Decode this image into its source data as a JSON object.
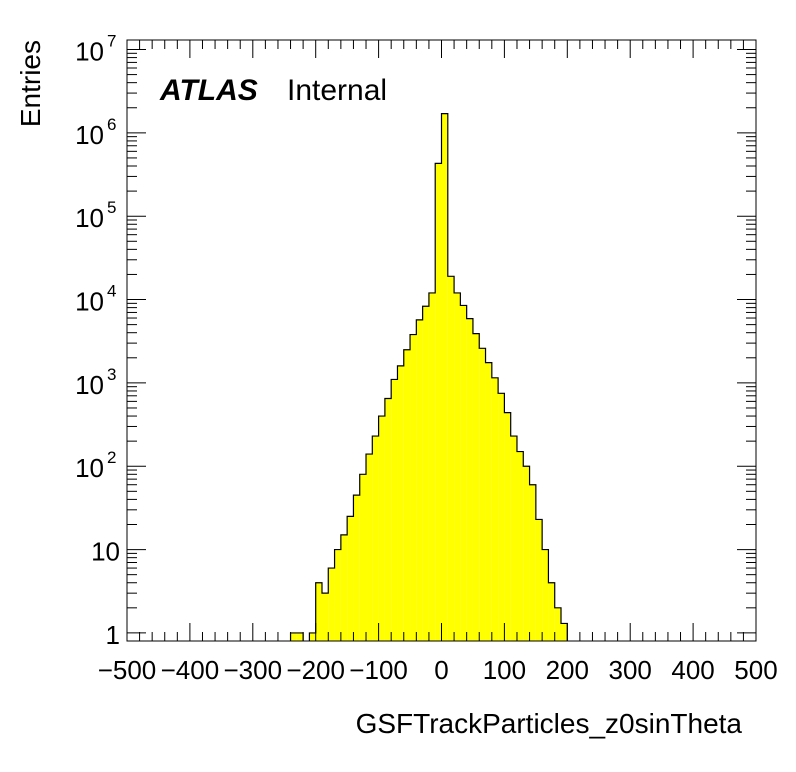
{
  "chart_data": {
    "type": "bar",
    "title": "",
    "xlabel": "GSFTrackParticles_z0sinTheta",
    "ylabel": "Entries",
    "xlim": [
      -500,
      500
    ],
    "ylim": [
      0.8,
      13000000
    ],
    "yscale": "log",
    "x_ticks": [
      "−500",
      "−400",
      "−300",
      "−200",
      "−100",
      "0",
      "100",
      "200",
      "300",
      "400",
      "500"
    ],
    "y_ticks": [
      {
        "base": "1",
        "exp": ""
      },
      {
        "base": "10",
        "exp": ""
      },
      {
        "base": "10",
        "exp": "2"
      },
      {
        "base": "10",
        "exp": "3"
      },
      {
        "base": "10",
        "exp": "4"
      },
      {
        "base": "10",
        "exp": "5"
      },
      {
        "base": "10",
        "exp": "6"
      },
      {
        "base": "10",
        "exp": "7"
      }
    ],
    "label_bold": "ATLAS",
    "label_text": "Internal",
    "fill_color": "#ffff00",
    "line_color": "#000000",
    "bin_width": 10,
    "bins": [
      [
        -240,
        -230,
        1
      ],
      [
        -230,
        -220,
        1
      ],
      [
        -210,
        -200,
        1
      ],
      [
        -200,
        -190,
        4
      ],
      [
        -190,
        -180,
        3
      ],
      [
        -180,
        -170,
        6
      ],
      [
        -170,
        -160,
        10
      ],
      [
        -160,
        -150,
        15
      ],
      [
        -150,
        -140,
        25
      ],
      [
        -140,
        -130,
        45
      ],
      [
        -130,
        -120,
        80
      ],
      [
        -120,
        -110,
        140
      ],
      [
        -110,
        -100,
        230
      ],
      [
        -100,
        -90,
        400
      ],
      [
        -90,
        -80,
        650
      ],
      [
        -80,
        -70,
        1100
      ],
      [
        -70,
        -60,
        1600
      ],
      [
        -60,
        -50,
        2500
      ],
      [
        -50,
        -40,
        3800
      ],
      [
        -40,
        -30,
        5700
      ],
      [
        -30,
        -20,
        8300
      ],
      [
        -20,
        -10,
        12000
      ],
      [
        -10,
        0,
        430000
      ],
      [
        0,
        10,
        1700000
      ],
      [
        10,
        20,
        19000
      ],
      [
        20,
        30,
        12000
      ],
      [
        30,
        40,
        8500
      ],
      [
        40,
        50,
        5900
      ],
      [
        50,
        60,
        3900
      ],
      [
        60,
        70,
        2600
      ],
      [
        70,
        80,
        1750
      ],
      [
        80,
        90,
        1150
      ],
      [
        90,
        100,
        750
      ],
      [
        100,
        110,
        440
      ],
      [
        110,
        120,
        230
      ],
      [
        120,
        130,
        150
      ],
      [
        130,
        140,
        100
      ],
      [
        140,
        150,
        60
      ],
      [
        150,
        160,
        23
      ],
      [
        160,
        170,
        10
      ],
      [
        170,
        180,
        4
      ],
      [
        180,
        190,
        2
      ],
      [
        190,
        200,
        1.3
      ]
    ]
  }
}
